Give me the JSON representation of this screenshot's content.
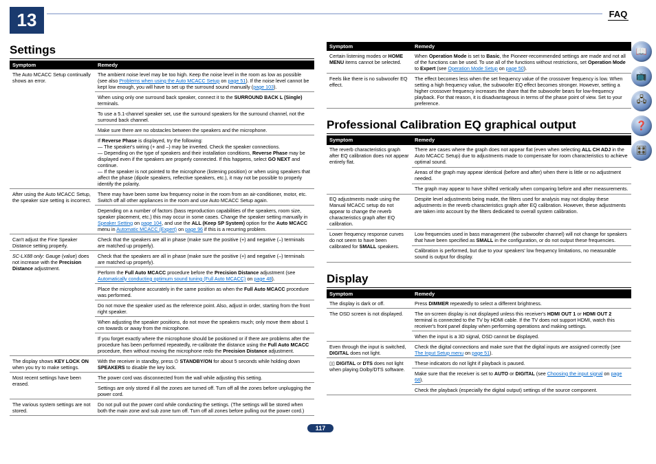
{
  "header": {
    "chapter": "13",
    "faq": "FAQ"
  },
  "pagenum": "117",
  "sidebar": [
    "📖",
    "📺",
    "🖧",
    "❓",
    "🎛"
  ],
  "col1": {
    "title": "Settings",
    "th_sym": "Symptom",
    "th_rem": "Remedy",
    "rows": [
      {
        "sym": "The Auto MCACC Setup continually shows an error.",
        "rem": "The ambient noise level may be too high. Keep the noise level in the room as low as possible (see also ",
        "link": "Problems when using the Auto MCACC Setup",
        "rem2": " on ",
        "link2": "page 51",
        "rem3": "). If the noise level cannot be kept low enough, you will have to set up the surround sound manually (",
        "link3": "page 103",
        "rem4": ")."
      },
      {
        "sym": "",
        "rem": "When using only one surround back speaker, connect it to the <b>SURROUND BACK L (Single)</b> terminals."
      },
      {
        "sym": "",
        "rem": "To use a 5.1-channel speaker set, use the surround speakers for the surround channel, not the surround back channel."
      },
      {
        "sym": "",
        "rem": "Make sure there are no obstacles between the speakers and the microphone."
      },
      {
        "sym": "",
        "rem": "If <b>Reverse Phase</b> is displayed, try the following:<br>— The speaker's wiring (+ and –) may be inverted. Check the speaker connections.<br>— Depending on the type of speakers and their installation conditions, <b>Reverse Phase</b> may be displayed even if the speakers are properly connected. If this happens, select <b>GO NEXT</b> and continue.<br>— If the speaker is not pointed to the microphone (listening position) or when using speakers that affect the phase (dipole speakers, reflective speakers, etc.), it may not be possible to properly identify the polarity."
      },
      {
        "sym": "After using the Auto MCACC Setup, the speaker size setting is incorrect.",
        "rem": "There may have been some low frequency noise in the room from an air-conditioner, motor, etc. Switch off all other appliances in the room and use Auto MCACC Setup again."
      },
      {
        "sym": "",
        "rem": "Depending on a number of factors (bass reproduction capabilities of the speakers, room size, speaker placement, etc.) this may occur in some cases. Change the speaker setting manually in <a class='link'>Speaker Setting</a> on <a class='link'>page 104</a>, and use the <b>ALL (Keep SP System)</b> option for the <b>Auto MCACC</b> menu in <a class='link'>Automatic MCACC (Expert)</a> on <a class='link'>page 96</a> if this is a recurring problem."
      },
      {
        "sym": "Can't adjust the Fine Speaker Distance setting properly.",
        "rem": "Check that the speakers are all in phase (make sure the positive (+) and negative (–) terminals are matched up properly)."
      },
      {
        "sym": "<span class='italic'>SC-LX88 only:</span> Gauge (value) does not increase with the <b>Precision Distance</b> adjustment.",
        "rem": "Check that the speakers are all in phase (make sure the positive (+) and negative (–) terminals are matched up properly)."
      },
      {
        "sym": "",
        "rem": "Perform the <b>Full Auto MCACC</b> procedure before the <b>Precision Distance</b> adjustment (see <a class='link'>Automatically conducting optimum sound tuning (Full Auto MCACC)</a> on <a class='link'>page 48</a>)."
      },
      {
        "sym": "",
        "rem": "Place the microphone accurately in the same position as when the <b>Full Auto MCACC</b> procedure was performed."
      },
      {
        "sym": "",
        "rem": "Do not move the speaker used as the reference point. Also, adjust in order, starting from the front right speaker."
      },
      {
        "sym": "",
        "rem": "When adjusting the speaker positions, do not move the speakers much; only move them about 1 cm towards or away from the microphone."
      },
      {
        "sym": "",
        "rem": "If you forget exactly where the microphone should be positioned or if there are problems after the procedure has been performed repeatedly, re-calibrate the distance using the <b>Full Auto MCACC</b> procedure, then without moving the microphone redo the <b>Precision Distance</b> adjustment."
      },
      {
        "sym": "The display shows <b>KEY LOCK ON</b> when you try to make settings.",
        "rem": "With the receiver in standby, press ⏻ <b>STANDBY/ON</b> for about 5 seconds while holding down <b>SPEAKERS</b> to disable the key lock."
      },
      {
        "sym": "Most recent settings have been erased.",
        "rem": "The power cord was disconnected from the wall while adjusting this setting."
      },
      {
        "sym": "",
        "rem": "Settings are only stored if all the zones are turned off. Turn off all the zones before unplugging the power cord."
      },
      {
        "sym": "The various system settings are not stored.",
        "rem": "Do not pull out the power cord while conducting the settings. (The settings will be stored when both the main zone and sub zone turn off. Turn off all zones before pulling out the power cord.)"
      }
    ]
  },
  "col2a": {
    "th_sym": "Symptom",
    "th_rem": "Remedy",
    "rows": [
      {
        "sym": "Certain listening modes or <b>HOME MENU</b> items cannot be selected.",
        "rem": "When <b>Operation Mode</b> is set to <b>Basic</b>, the Pioneer-recommended settings are made and not all of the functions can be used. To use all of the functions without restrictions, set <b>Operation Mode</b> to <b>Expert</b> (see <a class='link'>Operation Mode Setup</a> on <a class='link'>page 50</a>)."
      },
      {
        "sym": "Feels like there is no subwoofer EQ effect.",
        "rem": "The effect becomes less when the set frequency value of the crossover frequency is low. When setting a high frequency value, the subwoofer EQ effect becomes stronger. However, setting a higher crossover frequency increases the share that the subwoofer bears for low-frequency playback. For that reason, it is disadvantageous in terms of the phase point of view. Set to your preference."
      }
    ]
  },
  "col2b": {
    "title": "Professional Calibration EQ graphical output",
    "th_sym": "Symptom",
    "th_rem": "Remedy",
    "rows": [
      {
        "sym": "The reverb characteristics graph after EQ calibration does not appear entirely flat.",
        "rem": "There are cases where the graph does not appear flat (even when selecting <b>ALL CH ADJ</b> in the Auto MCACC Setup) due to adjustments made to compensate for room characteristics to achieve optimal sound."
      },
      {
        "sym": "",
        "rem": "Areas of the graph may appear identical (before and after) when there is little or no adjustment needed."
      },
      {
        "sym": "",
        "rem": "The graph may appear to have shifted vertically when comparing before and after measurements."
      },
      {
        "sym": "EQ adjustments made using the Manual MCACC setup do not appear to change the reverb characteristics graph after EQ calibration.",
        "rem": "Despite level adjustments being made, the filters used for analysis may not display these adjustments in the reverb characteristics graph after EQ calibration. However, these adjustments are taken into account by the filters dedicated to overall system calibration."
      },
      {
        "sym": "Lower frequency response curves do not seem to have been calibrated for <b>SMALL</b> speakers.",
        "rem": "Low frequencies used in bass management (the subwoofer channel) will not change for speakers that have been specified as <b>SMALL</b> in the configuration, or do not output these frequencies."
      },
      {
        "sym": "",
        "rem": "Calibration is performed, but due to your speakers' low frequency limitations, no measurable sound is output for display."
      }
    ]
  },
  "col2c": {
    "title": "Display",
    "th_sym": "Symptom",
    "th_rem": "Remedy",
    "rows": [
      {
        "sym": "The display is dark or off.",
        "rem": "Press <b>DIMMER</b> repeatedly to select a different brightness."
      },
      {
        "sym": "The OSD screen is not displayed.",
        "rem": "The on-screen display is not displayed unless this receiver's <b>HDMI OUT 1</b> or <b>HDMI OUT 2</b> terminal is connected to the TV by HDMI cable. If the TV does not support HDMI, watch this receiver's front panel display when performing operations and making settings."
      },
      {
        "sym": "",
        "rem": "When the input is a 3D signal, OSD cannot be displayed."
      },
      {
        "sym": "Even through the input is switched, <b>DIGITAL</b> does not light.",
        "rem": "Check the digital connections and make sure that the digital inputs are assigned correctly (see <a class='link'>The Input Setup menu</a> on <a class='link'>page 51</a>)."
      },
      {
        "sym": "▯▯ <b>DIGITAL</b>  or <b>DTS</b>  does not light when playing Dolby/DTS software.",
        "rem": "These indicators do not light if playback is paused."
      },
      {
        "sym": "",
        "rem": "Make sure that the receiver is set to <b>AUTO</b> or <b>DIGITAL</b> (see <a class='link'>Choosing the input signal</a> on <a class='link'>page 68</a>)."
      },
      {
        "sym": "",
        "rem": "Check the playback (especially the digital output) settings of the source component."
      }
    ]
  }
}
